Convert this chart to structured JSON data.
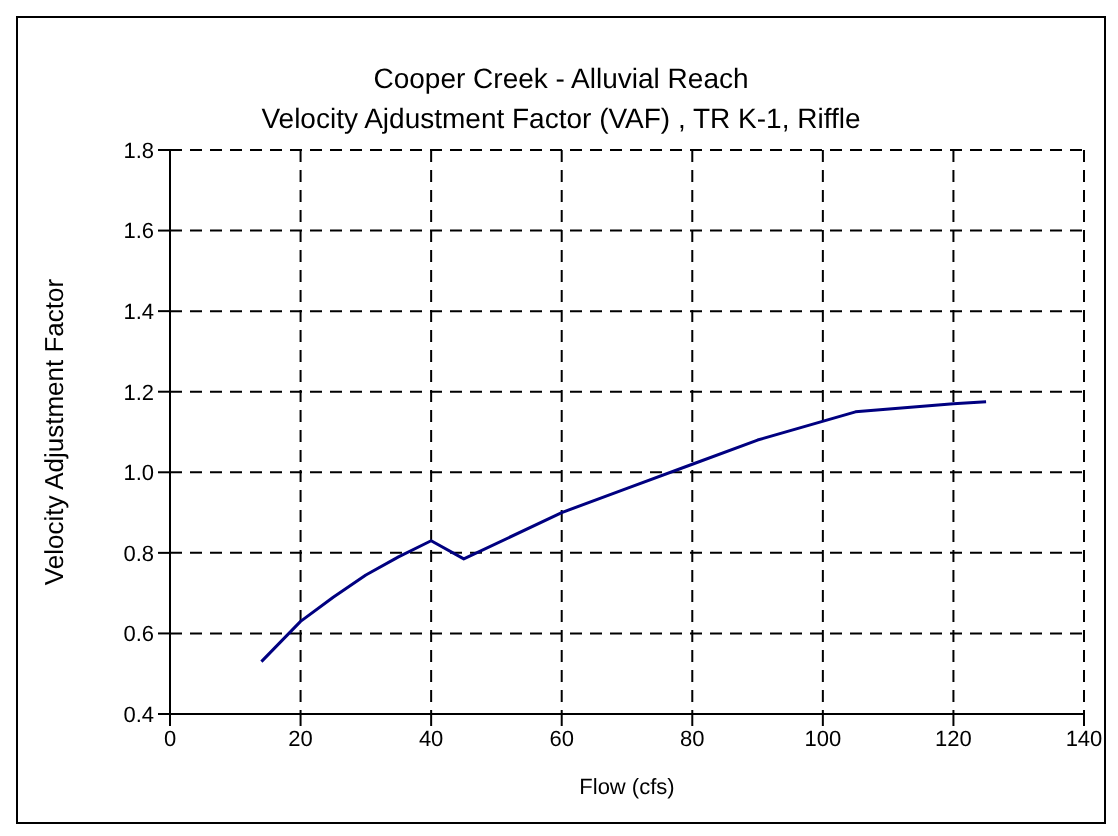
{
  "chart_data": {
    "type": "line",
    "title": "Cooper Creek - Alluvial Reach",
    "subtitle": "Velocity Ajdustment Factor (VAF) , TR K-1, Riffle",
    "xlabel": "Flow (cfs)",
    "ylabel": "Velocity Adjustment Factor",
    "x": [
      14,
      20,
      25,
      30,
      35,
      40,
      45,
      60,
      70,
      80,
      90,
      105,
      120,
      125
    ],
    "series": [
      {
        "color": "#000080",
        "values": [
          0.53,
          0.63,
          0.69,
          0.745,
          0.79,
          0.83,
          0.785,
          0.9,
          0.96,
          1.02,
          1.08,
          1.15,
          1.17,
          1.175
        ]
      }
    ],
    "xlim": [
      0,
      140
    ],
    "xticks": [
      0,
      20,
      40,
      60,
      80,
      100,
      120,
      140
    ],
    "ylim": [
      0.4,
      1.8
    ],
    "yticks": [
      {
        "value": 0.4,
        "label": "0.4"
      },
      {
        "value": 0.6,
        "label": "0.6"
      },
      {
        "value": 0.8,
        "label": "0.8"
      },
      {
        "value": 1.0,
        "label": "1.0"
      },
      {
        "value": 1.2,
        "label": "1.2"
      },
      {
        "value": 1.4,
        "label": "1.4"
      },
      {
        "value": 1.6,
        "label": "1.6"
      },
      {
        "value": 1.8,
        "label": "1.8"
      }
    ],
    "grid": true,
    "marker": "none",
    "line_style": "solid"
  }
}
